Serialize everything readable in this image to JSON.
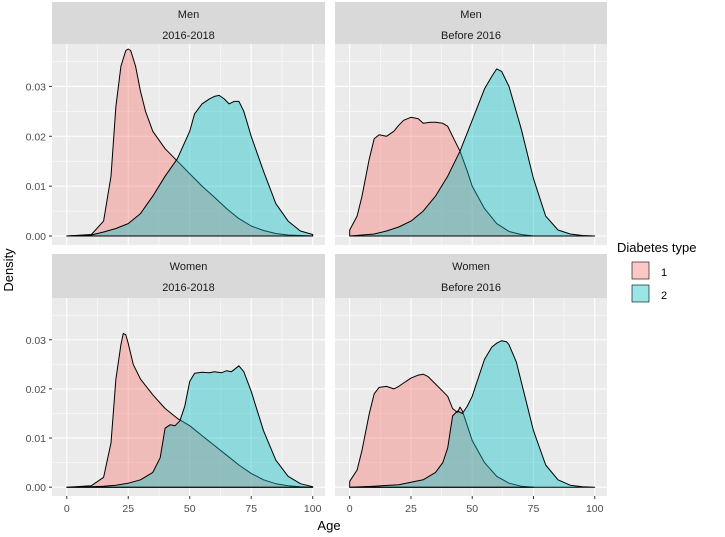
{
  "chart_data": {
    "type": "area",
    "xlabel": "Age",
    "ylabel": "Density",
    "xlim": [
      -6,
      105
    ],
    "ylim": [
      -0.0018,
      0.0385
    ],
    "x_ticks": [
      0,
      25,
      50,
      75,
      100
    ],
    "x_tick_labels": [
      "0",
      "25",
      "50",
      "75",
      "100"
    ],
    "y_ticks": [
      0,
      0.01,
      0.02,
      0.03
    ],
    "y_tick_labels": [
      "0.00",
      "0.01",
      "0.02",
      "0.03"
    ],
    "grid": true,
    "legend": {
      "title": "Diabetes type",
      "position": "right",
      "entries": [
        {
          "label": "1",
          "color": "#F8766D"
        },
        {
          "label": "2",
          "color": "#00BFC4"
        }
      ]
    },
    "panels": [
      {
        "sex": "Men",
        "period": "2016-2018",
        "series": [
          {
            "name": "1",
            "color": "#F8766D",
            "x": [
              0,
              10,
              15,
              18,
              20,
              22,
              24,
              25,
              26,
              28,
              30,
              32,
              35,
              40,
              45,
              50,
              55,
              60,
              65,
              70,
              75,
              80,
              85,
              90,
              95,
              100
            ],
            "y": [
              0,
              0.0003,
              0.003,
              0.012,
              0.026,
              0.034,
              0.0372,
              0.0375,
              0.0372,
              0.034,
              0.029,
              0.025,
              0.021,
              0.0175,
              0.015,
              0.0125,
              0.01,
              0.0078,
              0.0055,
              0.0035,
              0.002,
              0.0011,
              0.0005,
              0.0002,
              0.0001,
              0
            ]
          },
          {
            "name": "2",
            "color": "#00BFC4",
            "x": [
              0,
              10,
              15,
              20,
              25,
              30,
              35,
              40,
              45,
              50,
              52,
              55,
              58,
              60,
              62,
              64,
              66,
              68,
              70,
              72,
              75,
              80,
              85,
              90,
              95,
              100
            ],
            "y": [
              0,
              0.0002,
              0.0008,
              0.0015,
              0.0025,
              0.0045,
              0.008,
              0.012,
              0.0155,
              0.021,
              0.0245,
              0.0265,
              0.0275,
              0.028,
              0.0282,
              0.0275,
              0.0265,
              0.027,
              0.027,
              0.025,
              0.02,
              0.013,
              0.0065,
              0.003,
              0.001,
              0.0003
            ]
          }
        ]
      },
      {
        "sex": "Men",
        "period": "Before 2016",
        "series": [
          {
            "name": "1",
            "color": "#F8766D",
            "x": [
              0,
              3,
              5,
              8,
              10,
              12,
              15,
              18,
              20,
              22,
              25,
              28,
              30,
              33,
              35,
              38,
              40,
              42,
              45,
              48,
              50,
              55,
              60,
              65,
              70,
              75
            ],
            "y": [
              0.0012,
              0.004,
              0.008,
              0.0155,
              0.0195,
              0.0203,
              0.02,
              0.021,
              0.0222,
              0.0232,
              0.0238,
              0.0235,
              0.0226,
              0.0228,
              0.0228,
              0.0226,
              0.022,
              0.02,
              0.017,
              0.013,
              0.01,
              0.0055,
              0.0025,
              0.0009,
              0.0003,
              0
            ]
          },
          {
            "name": "2",
            "color": "#00BFC4",
            "x": [
              0,
              10,
              15,
              20,
              25,
              30,
              35,
              40,
              45,
              50,
              55,
              58,
              60,
              62,
              65,
              70,
              75,
              80,
              85,
              90,
              95,
              100
            ],
            "y": [
              0,
              0.0004,
              0.001,
              0.0018,
              0.003,
              0.005,
              0.008,
              0.012,
              0.017,
              0.0232,
              0.0295,
              0.032,
              0.0335,
              0.033,
              0.03,
              0.0215,
              0.0115,
              0.004,
              0.0012,
              0.0004,
              0.0001,
              0
            ]
          }
        ]
      },
      {
        "sex": "Women",
        "period": "2016-2018",
        "series": [
          {
            "name": "1",
            "color": "#F8766D",
            "x": [
              0,
              10,
              15,
              18,
              20,
              22,
              23,
              24,
              25,
              27,
              30,
              35,
              40,
              45,
              50,
              55,
              60,
              65,
              70,
              75,
              80,
              85,
              90,
              95,
              100
            ],
            "y": [
              0,
              0.0003,
              0.002,
              0.009,
              0.022,
              0.029,
              0.0313,
              0.031,
              0.0293,
              0.025,
              0.022,
              0.0188,
              0.016,
              0.014,
              0.0125,
              0.0105,
              0.0085,
              0.0065,
              0.0045,
              0.0028,
              0.0015,
              0.0007,
              0.0003,
              0.0001,
              0
            ]
          },
          {
            "name": "2",
            "color": "#00BFC4",
            "x": [
              0,
              10,
              15,
              20,
              25,
              30,
              35,
              38,
              40,
              42,
              44,
              46,
              48,
              50,
              52,
              55,
              58,
              60,
              63,
              65,
              67,
              70,
              72,
              75,
              80,
              85,
              90,
              95,
              100
            ],
            "y": [
              0,
              0.0001,
              0.0002,
              0.0004,
              0.0008,
              0.0015,
              0.003,
              0.006,
              0.012,
              0.0127,
              0.0125,
              0.0135,
              0.0165,
              0.0215,
              0.0232,
              0.0234,
              0.0233,
              0.0235,
              0.0233,
              0.0237,
              0.0235,
              0.0247,
              0.0235,
              0.0195,
              0.0115,
              0.0055,
              0.0022,
              0.0007,
              0.0001
            ]
          }
        ]
      },
      {
        "sex": "Women",
        "period": "Before 2016",
        "series": [
          {
            "name": "1",
            "color": "#F8766D",
            "x": [
              0,
              3,
              5,
              8,
              10,
              12,
              15,
              18,
              20,
              22,
              25,
              28,
              30,
              32,
              35,
              38,
              40,
              42,
              44,
              45,
              46,
              48,
              50,
              55,
              60,
              65,
              70,
              75
            ],
            "y": [
              0.0012,
              0.0035,
              0.0075,
              0.015,
              0.019,
              0.0203,
              0.0205,
              0.02,
              0.0205,
              0.0212,
              0.0222,
              0.0228,
              0.023,
              0.0225,
              0.021,
              0.0195,
              0.0185,
              0.016,
              0.0152,
              0.0163,
              0.0155,
              0.0125,
              0.0095,
              0.005,
              0.0022,
              0.0008,
              0.0002,
              0
            ]
          },
          {
            "name": "2",
            "color": "#00BFC4",
            "x": [
              0,
              10,
              20,
              30,
              35,
              38,
              40,
              42,
              44,
              46,
              48,
              50,
              52,
              55,
              58,
              60,
              62,
              64,
              65,
              68,
              70,
              75,
              80,
              85,
              90,
              95,
              100
            ],
            "y": [
              0,
              0.0002,
              0.0005,
              0.0015,
              0.003,
              0.005,
              0.008,
              0.0145,
              0.0155,
              0.015,
              0.0165,
              0.0185,
              0.0215,
              0.026,
              0.0285,
              0.0293,
              0.0298,
              0.0296,
              0.029,
              0.0255,
              0.0215,
              0.0115,
              0.0045,
              0.0015,
              0.0004,
              0.0001,
              0
            ]
          }
        ]
      }
    ]
  }
}
